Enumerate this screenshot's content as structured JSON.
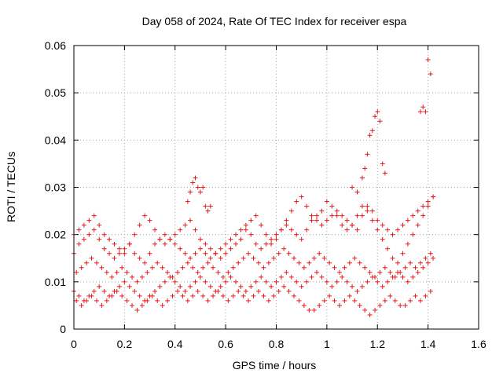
{
  "chart_data": {
    "type": "scatter",
    "title": "Day 058 of 2024, Rate Of TEC Index for receiver espa",
    "xlabel": "GPS time / hours",
    "ylabel": "ROTI / TECUs",
    "xlim": [
      0,
      1.6
    ],
    "ylim": [
      0,
      0.06
    ],
    "xticks": [
      "0",
      "0.2",
      "0.4",
      "0.6",
      "0.8",
      "1",
      "1.2",
      "1.4",
      "1.6"
    ],
    "yticks": [
      "0",
      "0.01",
      "0.02",
      "0.03",
      "0.04",
      "0.05",
      "0.06"
    ],
    "xtick_values": [
      0,
      0.2,
      0.4,
      0.6,
      0.8,
      1.0,
      1.2,
      1.4,
      1.6
    ],
    "ytick_values": [
      0,
      0.01,
      0.02,
      0.03,
      0.04,
      0.05,
      0.06
    ],
    "grid": true,
    "marker": "plus",
    "series": [
      {
        "name": "ROTI",
        "color": "#e41a1c",
        "x": [
          0.0,
          0.02,
          0.04,
          0.06,
          0.08,
          0.1,
          0.12,
          0.14,
          0.16,
          0.18,
          0.2,
          0.22,
          0.24,
          0.26,
          0.28,
          0.3,
          0.32,
          0.34,
          0.36,
          0.38,
          0.4,
          0.42,
          0.44,
          0.46,
          0.48,
          0.5,
          0.52,
          0.54,
          0.56,
          0.58,
          0.6,
          0.62,
          0.64,
          0.66,
          0.68,
          0.7,
          0.72,
          0.74,
          0.76,
          0.78,
          0.8,
          0.82,
          0.84,
          0.86,
          0.88,
          0.9,
          0.92,
          0.94,
          0.96,
          0.98,
          1.0,
          1.02,
          1.04,
          1.06,
          1.08,
          1.1,
          1.12,
          1.14,
          1.16,
          1.18,
          1.2,
          1.22,
          1.24,
          1.26,
          1.28,
          1.3,
          1.32,
          1.34,
          1.36,
          1.38,
          1.4,
          1.42,
          0.01,
          0.03,
          0.05,
          0.07,
          0.09,
          0.11,
          0.13,
          0.15,
          0.17,
          0.19,
          0.21,
          0.23,
          0.25,
          0.27,
          0.29,
          0.31,
          0.33,
          0.35,
          0.37,
          0.39,
          0.41,
          0.43,
          0.45,
          0.47,
          0.49,
          0.51,
          0.53,
          0.55,
          0.57,
          0.59,
          0.61,
          0.63,
          0.65,
          0.67,
          0.69,
          0.71,
          0.73,
          0.75,
          0.77,
          0.79,
          0.81,
          0.83,
          0.85,
          0.87,
          0.89,
          0.91,
          0.93,
          0.95,
          0.97,
          0.99,
          1.01,
          1.03,
          1.05,
          1.07,
          1.09,
          1.11,
          1.13,
          1.15,
          1.17,
          1.19,
          1.21,
          1.23,
          1.25,
          1.27,
          1.29,
          1.31,
          1.33,
          1.35,
          1.37,
          1.39,
          1.41,
          0.0,
          0.02,
          0.04,
          0.06,
          0.08,
          0.1,
          0.12,
          0.14,
          0.16,
          0.18,
          0.2,
          0.22,
          0.24,
          0.26,
          0.28,
          0.3,
          0.32,
          0.34,
          0.36,
          0.38,
          0.4,
          0.42,
          0.44,
          0.46,
          0.48,
          0.5,
          0.52,
          0.54,
          0.56,
          0.58,
          0.6,
          0.62,
          0.64,
          0.66,
          0.68,
          0.7,
          0.72,
          0.74,
          0.76,
          0.78,
          0.8,
          0.82,
          0.84,
          0.86,
          0.88,
          0.9,
          0.92,
          0.94,
          0.96,
          0.98,
          1.0,
          1.02,
          1.04,
          1.06,
          1.08,
          1.1,
          1.12,
          1.14,
          1.16,
          1.18,
          1.2,
          1.22,
          1.24,
          1.26,
          1.28,
          1.3,
          1.32,
          1.34,
          1.36,
          1.38,
          1.4,
          1.42,
          0.01,
          0.03,
          0.05,
          0.07,
          0.09,
          0.11,
          0.13,
          0.15,
          0.17,
          0.19,
          0.21,
          0.23,
          0.25,
          0.27,
          0.29,
          0.31,
          0.33,
          0.35,
          0.37,
          0.39,
          0.41,
          0.43,
          0.45,
          0.47,
          0.49,
          0.51,
          0.53,
          0.55,
          0.57,
          0.59,
          0.61,
          0.63,
          0.65,
          0.67,
          0.69,
          0.71,
          0.73,
          0.75,
          0.77,
          0.79,
          0.81,
          0.83,
          0.85,
          0.87,
          0.89,
          0.91,
          0.93,
          0.95,
          0.97,
          0.99,
          1.01,
          1.03,
          1.05,
          1.07,
          1.09,
          1.11,
          1.13,
          1.15,
          1.17,
          1.19,
          1.21,
          1.23,
          1.25,
          1.27,
          1.29,
          1.31,
          1.33,
          1.35,
          1.37,
          1.39,
          1.41,
          0.0,
          0.02,
          0.04,
          0.06,
          0.08,
          0.1,
          0.12,
          0.14,
          0.16,
          0.18,
          0.2,
          0.22,
          0.24,
          0.26,
          0.28,
          0.3,
          0.32,
          0.34,
          0.36,
          0.38,
          0.4,
          0.42,
          0.44,
          0.46,
          0.48,
          0.5,
          0.52,
          0.54,
          0.56,
          0.58,
          0.6,
          0.62,
          0.64,
          0.66,
          0.68,
          0.7,
          0.72,
          0.74,
          0.76,
          0.78,
          0.8,
          0.82,
          0.84,
          0.86,
          0.88,
          0.9,
          0.92,
          0.94,
          0.96,
          0.98,
          1.0,
          1.02,
          1.04,
          1.06,
          1.08,
          1.1,
          1.12,
          1.14,
          1.16,
          1.18,
          1.2,
          1.22,
          1.24,
          1.26,
          1.28,
          1.3,
          1.32,
          1.34,
          1.36,
          1.38,
          1.4,
          1.42,
          0.45,
          0.46,
          0.47,
          0.48,
          0.49,
          0.5,
          0.51,
          0.52,
          0.53,
          0.54,
          1.1,
          1.12,
          1.14,
          1.15,
          1.16,
          1.17,
          1.18,
          1.19,
          1.2,
          1.21,
          1.22,
          1.23,
          1.37,
          1.38,
          1.39,
          1.4,
          1.41,
          1.42
        ],
        "y": [
          0.016,
          0.018,
          0.019,
          0.02,
          0.021,
          0.019,
          0.017,
          0.016,
          0.015,
          0.016,
          0.017,
          0.018,
          0.016,
          0.015,
          0.014,
          0.016,
          0.018,
          0.019,
          0.02,
          0.019,
          0.018,
          0.017,
          0.016,
          0.015,
          0.016,
          0.017,
          0.016,
          0.015,
          0.016,
          0.017,
          0.018,
          0.019,
          0.02,
          0.021,
          0.022,
          0.02,
          0.018,
          0.017,
          0.018,
          0.019,
          0.02,
          0.021,
          0.022,
          0.021,
          0.02,
          0.019,
          0.021,
          0.023,
          0.024,
          0.022,
          0.023,
          0.024,
          0.025,
          0.024,
          0.023,
          0.022,
          0.021,
          0.024,
          0.026,
          0.025,
          0.023,
          0.022,
          0.021,
          0.02,
          0.021,
          0.022,
          0.023,
          0.024,
          0.025,
          0.026,
          0.027,
          0.028,
          0.012,
          0.013,
          0.014,
          0.015,
          0.014,
          0.013,
          0.012,
          0.011,
          0.012,
          0.013,
          0.012,
          0.011,
          0.01,
          0.011,
          0.012,
          0.013,
          0.014,
          0.013,
          0.012,
          0.011,
          0.012,
          0.013,
          0.014,
          0.013,
          0.012,
          0.013,
          0.014,
          0.013,
          0.012,
          0.011,
          0.012,
          0.013,
          0.014,
          0.015,
          0.016,
          0.015,
          0.014,
          0.013,
          0.014,
          0.015,
          0.016,
          0.017,
          0.016,
          0.015,
          0.014,
          0.013,
          0.014,
          0.015,
          0.016,
          0.015,
          0.014,
          0.013,
          0.012,
          0.013,
          0.014,
          0.015,
          0.014,
          0.013,
          0.012,
          0.011,
          0.012,
          0.013,
          0.012,
          0.011,
          0.012,
          0.013,
          0.014,
          0.013,
          0.014,
          0.015,
          0.016,
          0.008,
          0.007,
          0.006,
          0.007,
          0.008,
          0.009,
          0.008,
          0.007,
          0.008,
          0.009,
          0.01,
          0.009,
          0.008,
          0.007,
          0.006,
          0.007,
          0.008,
          0.009,
          0.01,
          0.011,
          0.01,
          0.009,
          0.008,
          0.009,
          0.01,
          0.011,
          0.01,
          0.009,
          0.008,
          0.009,
          0.01,
          0.011,
          0.01,
          0.009,
          0.008,
          0.009,
          0.01,
          0.011,
          0.01,
          0.009,
          0.01,
          0.011,
          0.012,
          0.011,
          0.01,
          0.009,
          0.01,
          0.011,
          0.012,
          0.011,
          0.01,
          0.009,
          0.01,
          0.011,
          0.01,
          0.009,
          0.008,
          0.009,
          0.01,
          0.011,
          0.01,
          0.009,
          0.01,
          0.011,
          0.012,
          0.011,
          0.01,
          0.011,
          0.012,
          0.013,
          0.014,
          0.015,
          0.006,
          0.005,
          0.006,
          0.007,
          0.006,
          0.005,
          0.006,
          0.007,
          0.008,
          0.007,
          0.006,
          0.005,
          0.004,
          0.005,
          0.006,
          0.007,
          0.006,
          0.005,
          0.006,
          0.007,
          0.008,
          0.007,
          0.006,
          0.007,
          0.008,
          0.007,
          0.006,
          0.007,
          0.008,
          0.007,
          0.006,
          0.007,
          0.008,
          0.007,
          0.006,
          0.007,
          0.008,
          0.007,
          0.006,
          0.007,
          0.008,
          0.009,
          0.008,
          0.007,
          0.006,
          0.005,
          0.004,
          0.004,
          0.005,
          0.006,
          0.007,
          0.006,
          0.005,
          0.006,
          0.007,
          0.006,
          0.005,
          0.004,
          0.003,
          0.004,
          0.005,
          0.006,
          0.007,
          0.006,
          0.005,
          0.005,
          0.006,
          0.007,
          0.006,
          0.007,
          0.008,
          0.02,
          0.021,
          0.022,
          0.023,
          0.024,
          0.022,
          0.02,
          0.019,
          0.018,
          0.017,
          0.016,
          0.018,
          0.02,
          0.022,
          0.024,
          0.023,
          0.021,
          0.019,
          0.018,
          0.019,
          0.02,
          0.021,
          0.022,
          0.023,
          0.021,
          0.019,
          0.018,
          0.017,
          0.016,
          0.015,
          0.016,
          0.017,
          0.018,
          0.019,
          0.021,
          0.023,
          0.024,
          0.022,
          0.02,
          0.018,
          0.019,
          0.021,
          0.023,
          0.025,
          0.027,
          0.028,
          0.026,
          0.024,
          0.023,
          0.025,
          0.027,
          0.026,
          0.024,
          0.022,
          0.021,
          0.022,
          0.024,
          0.026,
          0.025,
          0.023,
          0.021,
          0.019,
          0.017,
          0.015,
          0.014,
          0.016,
          0.018,
          0.02,
          0.022,
          0.024,
          0.026,
          0.028,
          0.027,
          0.029,
          0.031,
          0.032,
          0.03,
          0.029,
          0.03,
          0.026,
          0.025,
          0.026,
          0.03,
          0.029,
          0.032,
          0.034,
          0.037,
          0.041,
          0.042,
          0.045,
          0.046,
          0.044,
          0.035,
          0.033,
          0.046,
          0.047,
          0.046,
          0.057,
          0.054,
          0.028
        ]
      }
    ]
  }
}
